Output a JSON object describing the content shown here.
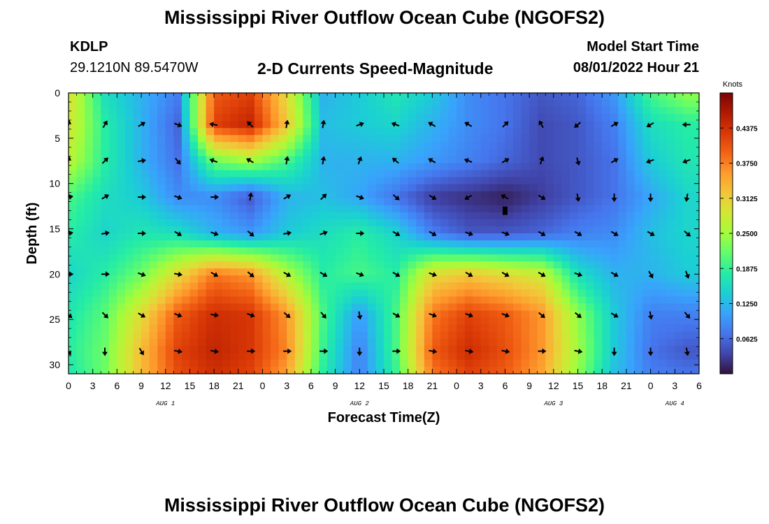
{
  "header": {
    "title": "Mississippi River Outflow Ocean Cube (NGOFS2)",
    "station": "KDLP",
    "coordinates": "29.1210N  89.5470W",
    "subtitle": "2-D Currents Speed-Magnitude",
    "model_start_label": "Model Start Time",
    "model_start_value": "08/01/2022 Hour 21"
  },
  "footer": {
    "title": "Mississippi River Outflow Ocean Cube (NGOFS2)"
  },
  "chart_data": {
    "type": "heatmap",
    "xlabel": "Forecast Time(Z)",
    "ylabel": "Depth (ft)",
    "x_tick_labels": [
      "0",
      "3",
      "6",
      "9",
      "12",
      "15",
      "18",
      "21",
      "0",
      "3",
      "6",
      "9",
      "12",
      "15",
      "18",
      "21",
      "0",
      "3",
      "6",
      "9",
      "12",
      "15",
      "18",
      "21",
      "0",
      "3",
      "6"
    ],
    "x_range_hours": [
      0,
      78
    ],
    "x_start_hour_index": 0,
    "day_labels": [
      {
        "label": "AUG 1",
        "hour": 12
      },
      {
        "label": "AUG 2",
        "hour": 36
      },
      {
        "label": "AUG 3",
        "hour": 60
      },
      {
        "label": "AUG 4",
        "hour": 75
      }
    ],
    "y_ticks": [
      0,
      5,
      10,
      15,
      20,
      25,
      30
    ],
    "y_range_ft": [
      0,
      31
    ],
    "colorbar": {
      "title": "Knots",
      "range": [
        0,
        0.5
      ],
      "tick_values": [
        0.0625,
        0.125,
        0.1875,
        0.25,
        0.3125,
        0.375,
        0.4375
      ],
      "tick_labels": [
        "0.0625",
        "0.1250",
        "0.1875",
        "0.2500",
        "0.3125",
        "0.3750",
        "0.4375"
      ],
      "colors": [
        "#30123b",
        "#4145ab",
        "#4675ed",
        "#39a2fc",
        "#1bcfd4",
        "#24eca6",
        "#61fc6c",
        "#a4fc3b",
        "#d1e834",
        "#f3c63a",
        "#fe9b2d",
        "#f36315",
        "#d93806",
        "#b11901",
        "#7a0402"
      ]
    },
    "speed_grid": {
      "hours": [
        0,
        4.5,
        9,
        13.5,
        18,
        22.5,
        27,
        31.5,
        36,
        40.5,
        45,
        49.5,
        54,
        58.5,
        63,
        67.5,
        72,
        76.5
      ],
      "depths_ft": [
        0,
        3.5,
        7.5,
        11.5,
        15.5,
        20,
        24.5,
        28.5,
        31
      ],
      "values": [
        [
          0.3,
          0.16,
          0.12,
          0.08,
          0.4,
          0.42,
          0.3,
          0.12,
          0.14,
          0.17,
          0.14,
          0.09,
          0.07,
          0.05,
          0.06,
          0.1,
          0.2,
          0.24
        ],
        [
          0.29,
          0.18,
          0.12,
          0.06,
          0.42,
          0.45,
          0.32,
          0.13,
          0.14,
          0.15,
          0.12,
          0.09,
          0.07,
          0.04,
          0.05,
          0.08,
          0.16,
          0.18
        ],
        [
          0.27,
          0.18,
          0.12,
          0.07,
          0.22,
          0.25,
          0.2,
          0.12,
          0.12,
          0.12,
          0.1,
          0.08,
          0.06,
          0.04,
          0.05,
          0.07,
          0.14,
          0.17
        ],
        [
          0.2,
          0.16,
          0.14,
          0.09,
          0.09,
          0.05,
          0.12,
          0.13,
          0.11,
          0.07,
          0.03,
          0.02,
          0.01,
          0.03,
          0.05,
          0.07,
          0.11,
          0.15
        ],
        [
          0.18,
          0.15,
          0.17,
          0.16,
          0.12,
          0.1,
          0.14,
          0.16,
          0.18,
          0.15,
          0.08,
          0.05,
          0.05,
          0.06,
          0.08,
          0.09,
          0.13,
          0.15
        ],
        [
          0.15,
          0.18,
          0.22,
          0.3,
          0.38,
          0.36,
          0.26,
          0.18,
          0.2,
          0.18,
          0.3,
          0.32,
          0.3,
          0.28,
          0.16,
          0.12,
          0.12,
          0.14
        ],
        [
          0.17,
          0.21,
          0.3,
          0.4,
          0.44,
          0.43,
          0.36,
          0.2,
          0.1,
          0.2,
          0.38,
          0.42,
          0.4,
          0.36,
          0.24,
          0.14,
          0.08,
          0.08
        ],
        [
          0.18,
          0.22,
          0.33,
          0.42,
          0.45,
          0.43,
          0.37,
          0.19,
          0.08,
          0.2,
          0.4,
          0.44,
          0.41,
          0.36,
          0.25,
          0.14,
          0.07,
          0.05
        ],
        [
          0.17,
          0.22,
          0.33,
          0.41,
          0.44,
          0.42,
          0.35,
          0.18,
          0.08,
          0.19,
          0.38,
          0.42,
          0.4,
          0.35,
          0.24,
          0.13,
          0.08,
          0.07
        ]
      ]
    },
    "vectors": {
      "hours": [
        0,
        4.5,
        9,
        13.5,
        18,
        22.5,
        27,
        31.5,
        36,
        40.5,
        45,
        49.5,
        54,
        58.5,
        63,
        67.5,
        72,
        76.5
      ],
      "depths_ft": [
        3.5,
        7.5,
        11.5,
        15.5,
        20,
        24.5,
        28.5
      ],
      "direction_deg": [
        [
          10,
          30,
          60,
          110,
          280,
          315,
          10,
          10,
          70,
          290,
          300,
          300,
          45,
          330,
          230,
          60,
          240,
          270
        ],
        [
          10,
          45,
          80,
          140,
          290,
          300,
          10,
          10,
          20,
          310,
          300,
          290,
          60,
          20,
          165,
          60,
          250,
          250
        ],
        [
          80,
          60,
          90,
          110,
          90,
          10,
          60,
          45,
          110,
          130,
          120,
          240,
          300,
          120,
          170,
          180,
          180,
          190
        ],
        [
          80,
          80,
          90,
          120,
          110,
          130,
          80,
          70,
          90,
          120,
          120,
          110,
          110,
          120,
          120,
          120,
          120,
          130
        ],
        [
          90,
          90,
          110,
          100,
          120,
          130,
          120,
          120,
          110,
          120,
          110,
          120,
          120,
          120,
          110,
          120,
          150,
          160
        ],
        [
          130,
          135,
          120,
          110,
          100,
          110,
          130,
          140,
          170,
          120,
          110,
          110,
          110,
          130,
          130,
          120,
          170,
          140
        ],
        [
          150,
          180,
          150,
          100,
          100,
          90,
          90,
          90,
          180,
          90,
          100,
          100,
          100,
          90,
          100,
          180,
          180,
          170
        ]
      ]
    },
    "annotations": [
      {
        "type": "marker",
        "hour": 54,
        "depth_ft": 13
      }
    ]
  }
}
